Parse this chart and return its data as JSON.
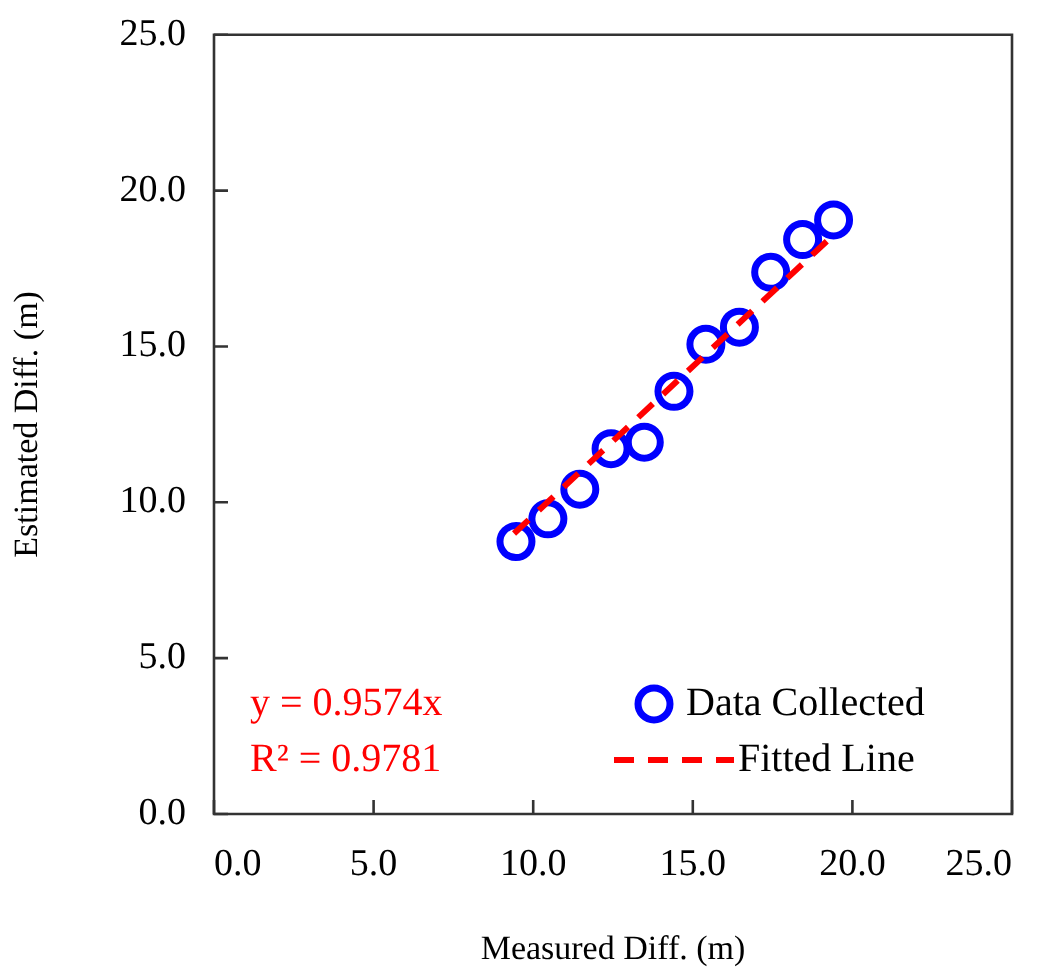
{
  "chart_data": {
    "type": "scatter",
    "xlabel": "Measured Diff. (m)",
    "ylabel": "Estimated Diff. (m)",
    "xlim": [
      0,
      25
    ],
    "ylim": [
      0,
      25
    ],
    "xticks": [
      {
        "value": 0,
        "label": "0.0"
      },
      {
        "value": 5,
        "label": "5.0"
      },
      {
        "value": 10,
        "label": "10.0"
      },
      {
        "value": 15,
        "label": "15.0"
      },
      {
        "value": 20,
        "label": "20.0"
      },
      {
        "value": 25,
        "label": "25.0"
      }
    ],
    "yticks": [
      {
        "value": 0,
        "label": "0.0"
      },
      {
        "value": 5,
        "label": "5.0"
      },
      {
        "value": 10,
        "label": "10.0"
      },
      {
        "value": 15,
        "label": "15.0"
      },
      {
        "value": 20,
        "label": "20.0"
      },
      {
        "value": 25,
        "label": "25.0"
      }
    ],
    "legend": "bottom right",
    "series": [
      {
        "name": "Data Collected",
        "color": "#0000ff",
        "marker": "circle",
        "x": [
          9.46,
          10.46,
          11.46,
          12.44,
          13.48,
          14.41,
          15.41,
          16.46,
          17.44,
          18.44,
          19.41
        ],
        "values": [
          8.74,
          9.47,
          10.42,
          11.72,
          11.93,
          13.56,
          15.07,
          15.62,
          17.38,
          18.43,
          19.06
        ]
      },
      {
        "name": "Fitted Line",
        "type": "line",
        "color": "#ff0000",
        "line_style": "dashed",
        "marker": "none",
        "x": [
          9.4,
          19.4
        ],
        "values": [
          9.0,
          18.57
        ]
      }
    ],
    "annotations": [
      "y = 0.9574x",
      "R² = 0.9781"
    ]
  }
}
